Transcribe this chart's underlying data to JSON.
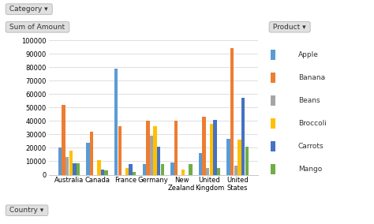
{
  "categories": [
    "Australia",
    "Canada",
    "France",
    "Germany",
    "New\nZealand",
    "United\nKingdom",
    "United\nStates"
  ],
  "cat_keys": [
    "Australia",
    "Canada",
    "France",
    "Germany",
    "New\nZealand",
    "United\nKingdom",
    "United\nStates"
  ],
  "products": [
    "Apple",
    "Banana",
    "Beans",
    "Broccoli",
    "Carrots",
    "Mango"
  ],
  "bar_colors": {
    "Apple": "#5B9BD5",
    "Banana": "#ED7D31",
    "Beans": "#A5A5A5",
    "Broccoli": "#FFC000",
    "Carrots": "#4472C4",
    "Mango": "#70AD47"
  },
  "data": {
    "Australia": {
      "Apple": 20000,
      "Banana": 52000,
      "Beans": 13000,
      "Broccoli": 18000,
      "Carrots": 8500,
      "Mango": 8500
    },
    "Canada": {
      "Apple": 24000,
      "Banana": 32000,
      "Beans": 0,
      "Broccoli": 11000,
      "Carrots": 4000,
      "Mango": 3000
    },
    "France": {
      "Apple": 79000,
      "Banana": 36000,
      "Beans": 0,
      "Broccoli": 5000,
      "Carrots": 8000,
      "Mango": 2000
    },
    "Germany": {
      "Apple": 8000,
      "Banana": 40000,
      "Beans": 29000,
      "Broccoli": 36000,
      "Carrots": 21000,
      "Mango": 8000
    },
    "New\nZealand": {
      "Apple": 9000,
      "Banana": 40000,
      "Beans": 0,
      "Broccoli": 4000,
      "Carrots": 0,
      "Mango": 8000
    },
    "United\nKingdom": {
      "Apple": 16000,
      "Banana": 43000,
      "Beans": 5000,
      "Broccoli": 38000,
      "Carrots": 41000,
      "Mango": 5000
    },
    "United\nStates": {
      "Apple": 27000,
      "Banana": 94000,
      "Beans": 7000,
      "Broccoli": 26000,
      "Carrots": 57000,
      "Mango": 21000
    }
  },
  "ylim": [
    0,
    100000
  ],
  "yticks": [
    0,
    10000,
    20000,
    30000,
    40000,
    50000,
    60000,
    70000,
    80000,
    90000,
    100000
  ],
  "bg_color": "#FFFFFF",
  "plot_bg": "#FFFFFF",
  "grid_color": "#D9D9D9",
  "category_label": "Category",
  "country_label": "Country",
  "product_label": "Product",
  "ylabel_text": "Sum of Amount",
  "btn_face": "#E0E0E0",
  "btn_edge": "#BBBBBB"
}
